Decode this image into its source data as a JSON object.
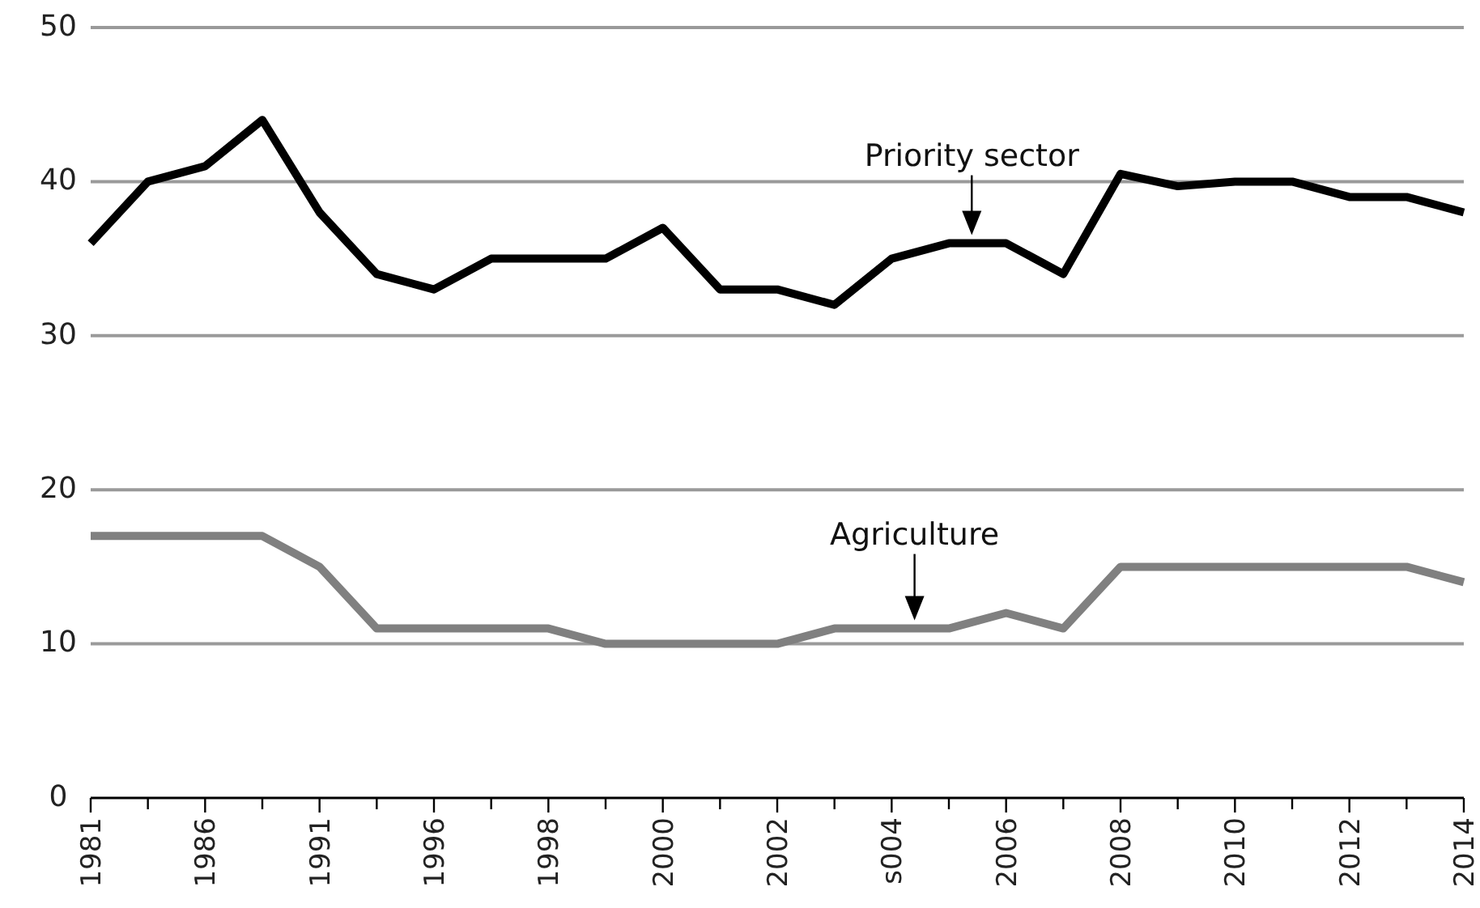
{
  "chart_data": {
    "type": "line",
    "categories": [
      "1981",
      null,
      "1986",
      null,
      "1991",
      null,
      "1996",
      null,
      "1998",
      null,
      "2000",
      null,
      "2002",
      null,
      "s004",
      null,
      "2006",
      null,
      "2008",
      null,
      "2010",
      null,
      "2012",
      null,
      "2014"
    ],
    "series": [
      {
        "name": "Priority sector",
        "color": "#000000",
        "values": [
          36,
          40,
          41,
          44,
          38,
          34,
          33,
          35,
          35,
          35,
          37,
          33,
          33,
          32,
          35,
          36,
          36,
          34,
          40.5,
          39.7,
          40,
          40,
          39,
          39,
          38
        ]
      },
      {
        "name": "Agriculture",
        "color": "#808080",
        "values": [
          17,
          17,
          17,
          17,
          15,
          11,
          11,
          11,
          11,
          10,
          10,
          10,
          10,
          11,
          11,
          11,
          12,
          11,
          15,
          15,
          15,
          15,
          15,
          15,
          14
        ]
      }
    ],
    "ylim": [
      0,
      50
    ],
    "yticks": [
      0,
      10,
      20,
      30,
      40,
      50
    ],
    "grid": "y",
    "marker": "none",
    "line_style": "solid"
  }
}
